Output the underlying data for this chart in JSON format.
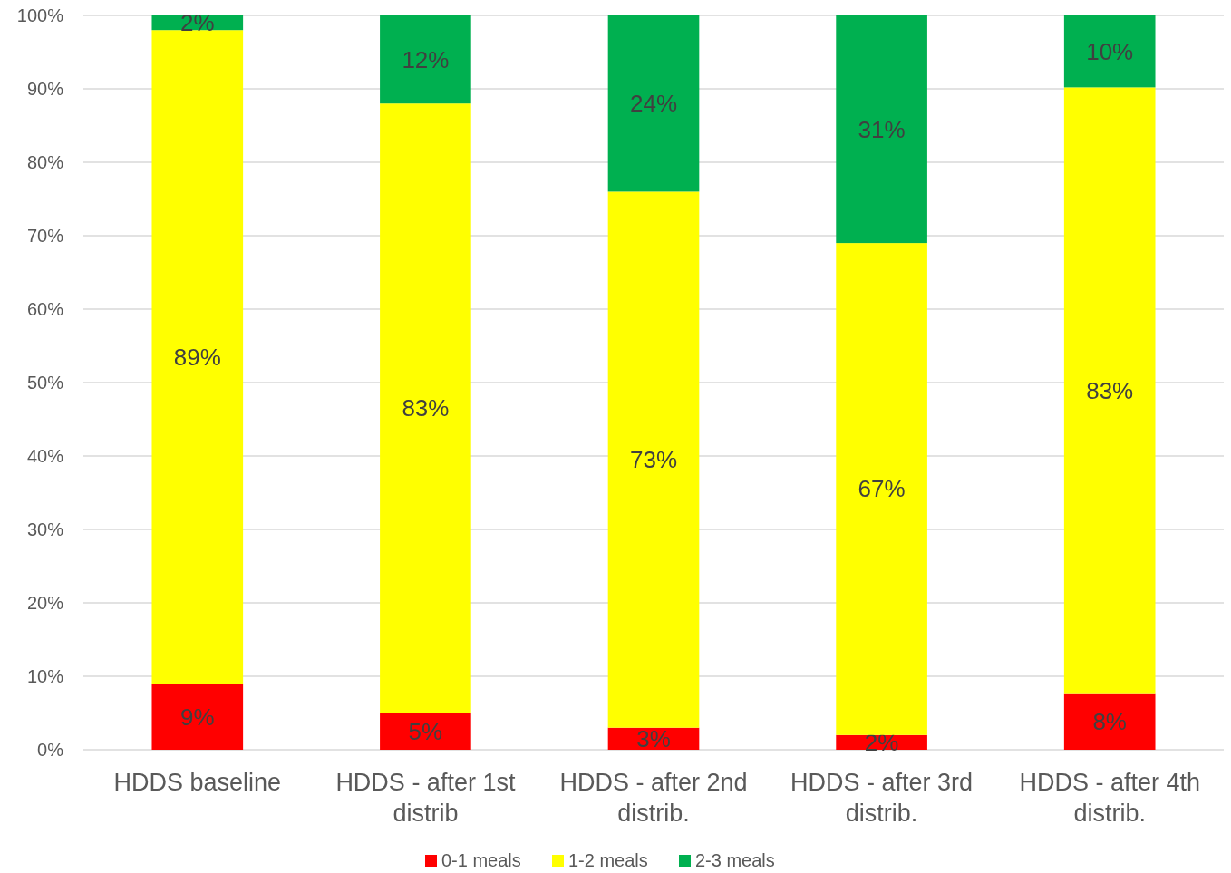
{
  "chart_data": {
    "type": "bar",
    "stacked": true,
    "categories": [
      "HDDS baseline",
      "HDDS - after 1st distrib",
      "HDDS - after 2nd distrib.",
      "HDDS - after 3rd distrib.",
      "HDDS - after 4th distrib."
    ],
    "series": [
      {
        "name": "0-1 meals",
        "color": "#ff0000",
        "values": [
          9,
          5,
          3,
          2,
          7.7
        ],
        "value_labels": [
          "9%",
          "5%",
          "3%",
          "2%",
          "8%"
        ]
      },
      {
        "name": "1-2 meals",
        "color": "#ffff00",
        "values": [
          89,
          83,
          73,
          67,
          82.5
        ],
        "value_labels": [
          "89%",
          "83%",
          "73%",
          "67%",
          "83%"
        ]
      },
      {
        "name": "2-3 meals",
        "color": "#00b050",
        "values": [
          2,
          12,
          24,
          31,
          9.8
        ],
        "value_labels": [
          "2%",
          "12%",
          "24%",
          "31%",
          "10%"
        ]
      }
    ],
    "ylim": [
      0,
      100
    ],
    "yticks": [
      {
        "value": 0,
        "label": "0%"
      },
      {
        "value": 10,
        "label": "10%"
      },
      {
        "value": 20,
        "label": "20%"
      },
      {
        "value": 30,
        "label": "30%"
      },
      {
        "value": 40,
        "label": "40%"
      },
      {
        "value": 50,
        "label": "50%"
      },
      {
        "value": 60,
        "label": "60%"
      },
      {
        "value": 70,
        "label": "70%"
      },
      {
        "value": 80,
        "label": "80%"
      },
      {
        "value": 90,
        "label": "90%"
      },
      {
        "value": 100,
        "label": "100%"
      }
    ],
    "grid": "y",
    "legend": "bottom"
  }
}
